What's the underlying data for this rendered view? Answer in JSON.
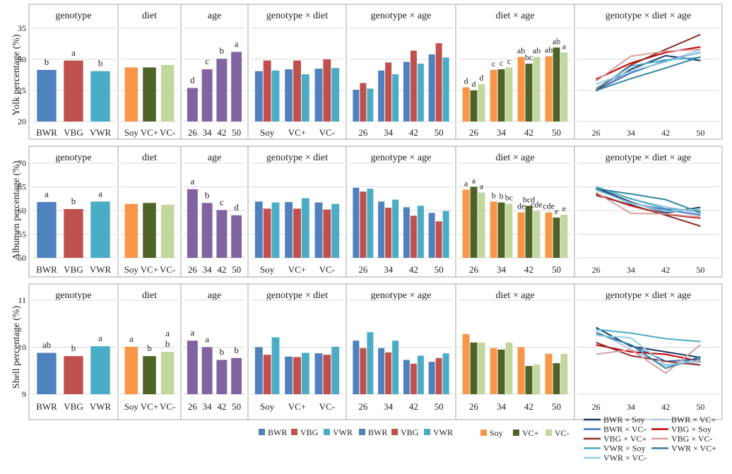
{
  "colors": {
    "BWR": "#4F81BD",
    "VBG": "#C0504D",
    "VWR": "#4BACC6",
    "Soy": "#F79646",
    "VC+": "#4F6228",
    "VC-": "#C3D69B",
    "age": "#8064A2",
    "BWR × Soy": "#1F3864",
    "BWR × VC+": "#B4C7E7",
    "BWR × VC-": "#4472C4",
    "VBG × Soy": "#C00000",
    "VBG × VC+": "#8B2E2E",
    "VBG × VC-": "#D9A0A0",
    "VWR × Soy": "#4BACC6",
    "VWR × VC+": "#31859C",
    "VWR × VC-": "#92CDDC",
    "grid": "#D9D9D9",
    "border": "#A6A6A6"
  },
  "panel_titles": [
    "genotype",
    "diet",
    "age",
    "genotype × diet",
    "genotype × age",
    "diet × age",
    "genotype × diet × age"
  ],
  "legends": {
    "genotype": [
      "BWR",
      "VBG",
      "VWR"
    ],
    "diet": [
      "Soy",
      "VC+",
      "VC-"
    ],
    "interaction": [
      "BWR × Soy",
      "BWR × VC+",
      "BWR × VC-",
      "VBG × Soy",
      "VBG × VC+",
      "VBG × VC-",
      "VWR × Soy",
      "VWR × VC+",
      "VWR × VC-"
    ]
  },
  "chart_data": [
    {
      "type": "bar",
      "ylabel": "Yolk percentage (%)",
      "ylim": [
        20,
        35
      ],
      "yticks": [
        20,
        25,
        30,
        35
      ],
      "genotype": {
        "categories": [
          "BWR",
          "VBG",
          "VWR"
        ],
        "values": [
          28.3,
          29.8,
          28.1
        ],
        "letters": [
          "b",
          "a",
          "b"
        ]
      },
      "diet": {
        "categories": [
          "Soy",
          "VC+",
          "VC-"
        ],
        "values": [
          28.7,
          28.7,
          29.1
        ],
        "letters": [
          "",
          "",
          ""
        ]
      },
      "age": {
        "categories": [
          "26",
          "34",
          "42",
          "50"
        ],
        "values": [
          25.4,
          28.4,
          30.1,
          31.2
        ],
        "letters": [
          "d",
          "c",
          "b",
          "a"
        ]
      },
      "genotype_diet": {
        "categories": [
          "Soy",
          "VC+",
          "VC-"
        ],
        "series": [
          {
            "name": "BWR",
            "values": [
              28.1,
              28.4,
              28.5
            ]
          },
          {
            "name": "VBG",
            "values": [
              29.8,
              29.8,
              30.0
            ]
          },
          {
            "name": "VWR",
            "values": [
              28.2,
              27.6,
              28.6
            ]
          }
        ]
      },
      "genotype_age": {
        "categories": [
          "26",
          "34",
          "42",
          "50"
        ],
        "series": [
          {
            "name": "BWR",
            "values": [
              25.1,
              28.2,
              29.6,
              30.8
            ]
          },
          {
            "name": "VBG",
            "values": [
              26.2,
              29.5,
              31.4,
              32.6
            ]
          },
          {
            "name": "VWR",
            "values": [
              25.3,
              27.6,
              29.3,
              30.3
            ]
          }
        ]
      },
      "diet_age": {
        "categories": [
          "26",
          "34",
          "42",
          "50"
        ],
        "series": [
          {
            "name": "Soy",
            "values": [
              25.5,
              28.3,
              30.4,
              30.5
            ]
          },
          {
            "name": "VC+",
            "values": [
              25.0,
              28.4,
              29.3,
              31.9
            ]
          },
          {
            "name": "VC-",
            "values": [
              26.0,
              28.7,
              30.4,
              31.1
            ]
          }
        ],
        "letters": [
          [
            "d",
            "d",
            "d"
          ],
          [
            "c",
            "c",
            "c"
          ],
          [
            "ab",
            "bc",
            "ab"
          ],
          [
            "ab",
            "ab",
            "a"
          ]
        ]
      },
      "genotype_diet_age": {
        "type": "line",
        "x": [
          "26",
          "34",
          "42",
          "50"
        ],
        "series": [
          {
            "name": "BWR × Soy",
            "values": [
              24.9,
              28.4,
              30.6,
              29.8
            ]
          },
          {
            "name": "BWR × VC+",
            "values": [
              25.2,
              28.0,
              29.6,
              31.6
            ]
          },
          {
            "name": "BWR × VC-",
            "values": [
              25.0,
              27.8,
              29.8,
              31.1
            ]
          },
          {
            "name": "VBG × Soy",
            "values": [
              26.8,
              29.4,
              31.1,
              32.0
            ]
          },
          {
            "name": "VBG × VC+",
            "values": [
              25.0,
              29.1,
              31.6,
              34.0
            ]
          },
          {
            "name": "VBG × VC-",
            "values": [
              26.5,
              30.5,
              31.3,
              31.6
            ]
          },
          {
            "name": "VWR × Soy",
            "values": [
              25.3,
              28.9,
              29.9,
              30.3
            ]
          },
          {
            "name": "VWR × VC+",
            "values": [
              25.0,
              26.9,
              28.6,
              30.4
            ]
          },
          {
            "name": "VWR × VC-",
            "values": [
              26.0,
              28.1,
              29.6,
              31.2
            ]
          }
        ]
      }
    },
    {
      "type": "bar",
      "ylabel": "Albumen percentage (%)",
      "ylim": [
        50,
        70
      ],
      "yticks": [
        50,
        55,
        60,
        65,
        70
      ],
      "genotype": {
        "categories": [
          "BWR",
          "VBG",
          "VWR"
        ],
        "values": [
          61.8,
          60.3,
          61.9
        ],
        "letters": [
          "a",
          "b",
          "a"
        ]
      },
      "diet": {
        "categories": [
          "Soy",
          "VC+",
          "VC-"
        ],
        "values": [
          61.4,
          61.6,
          61.2
        ],
        "letters": [
          "",
          "",
          ""
        ]
      },
      "age": {
        "categories": [
          "26",
          "34",
          "42",
          "50"
        ],
        "values": [
          64.5,
          61.6,
          60.1,
          59.0
        ],
        "letters": [
          "a",
          "b",
          "c",
          "d"
        ]
      },
      "genotype_diet": {
        "categories": [
          "Soy",
          "VC+",
          "VC-"
        ],
        "series": [
          {
            "name": "BWR",
            "values": [
              61.9,
              61.8,
              61.7
            ]
          },
          {
            "name": "VBG",
            "values": [
              60.4,
              60.4,
              60.2
            ]
          },
          {
            "name": "VWR",
            "values": [
              61.7,
              62.6,
              61.4
            ]
          }
        ]
      },
      "genotype_age": {
        "categories": [
          "26",
          "34",
          "42",
          "50"
        ],
        "series": [
          {
            "name": "BWR",
            "values": [
              64.8,
              61.9,
              60.7,
              59.5
            ]
          },
          {
            "name": "VBG",
            "values": [
              64.0,
              60.6,
              58.9,
              57.7
            ]
          },
          {
            "name": "VWR",
            "values": [
              64.6,
              62.3,
              61.0,
              59.9
            ]
          }
        ]
      },
      "diet_age": {
        "categories": [
          "26",
          "34",
          "42",
          "50"
        ],
        "series": [
          {
            "name": "Soy",
            "values": [
              64.4,
              61.9,
              59.6,
              59.6
            ]
          },
          {
            "name": "VC+",
            "values": [
              65.0,
              61.7,
              61.0,
              58.5
            ]
          },
          {
            "name": "VC-",
            "values": [
              63.8,
              61.4,
              59.9,
              59.1
            ]
          }
        ],
        "letters": [
          [
            "a",
            "a",
            "a"
          ],
          [
            "b",
            "b",
            "bc"
          ],
          [
            "de",
            "bcd",
            "cde"
          ],
          [
            "cde",
            "e",
            "e"
          ]
        ]
      },
      "genotype_diet_age": {
        "type": "line",
        "x": [
          "26",
          "34",
          "42",
          "50"
        ],
        "series": [
          {
            "name": "BWR × Soy",
            "values": [
              64.8,
              61.8,
              59.5,
              60.7
            ]
          },
          {
            "name": "BWR × VC+",
            "values": [
              65.0,
              62.4,
              60.8,
              59.3
            ]
          },
          {
            "name": "BWR × VC-",
            "values": [
              64.5,
              61.5,
              60.2,
              59.0
            ]
          },
          {
            "name": "VBG × Soy",
            "values": [
              63.5,
              61.0,
              59.2,
              58.4
            ]
          },
          {
            "name": "VBG × VC+",
            "values": [
              63.2,
              61.2,
              59.0,
              56.7
            ]
          },
          {
            "name": "VBG × VC-",
            "values": [
              63.8,
              59.4,
              59.3,
              58.6
            ]
          },
          {
            "name": "VWR × Soy",
            "values": [
              65.0,
              62.5,
              60.4,
              59.9
            ]
          },
          {
            "name": "VWR × VC+",
            "values": [
              64.6,
              63.5,
              62.3,
              59.5
            ]
          },
          {
            "name": "VWR × VC-",
            "values": [
              64.3,
              61.6,
              59.8,
              60.3
            ]
          }
        ]
      }
    },
    {
      "type": "bar",
      "ylabel": "Shell percentage (%)",
      "ylim": [
        9,
        11
      ],
      "yticks": [
        9,
        10,
        11
      ],
      "genotype": {
        "categories": [
          "BWR",
          "VBG",
          "VWR"
        ],
        "values": [
          9.88,
          9.81,
          10.02
        ],
        "letters": [
          "ab",
          "b",
          "a"
        ]
      },
      "diet": {
        "categories": [
          "Soy",
          "VC+",
          "VC-"
        ],
        "values": [
          10.01,
          9.81,
          9.9
        ],
        "letters": [
          "a",
          "b",
          "a\nb"
        ]
      },
      "age": {
        "categories": [
          "26",
          "34",
          "42",
          "50"
        ],
        "values": [
          10.14,
          10.0,
          9.73,
          9.77
        ],
        "letters": [
          "a",
          "a",
          "b",
          "b"
        ]
      },
      "genotype_diet": {
        "categories": [
          "Soy",
          "VC+",
          "VC-"
        ],
        "series": [
          {
            "name": "BWR",
            "values": [
              10.0,
              9.8,
              9.87
            ]
          },
          {
            "name": "VBG",
            "values": [
              9.84,
              9.79,
              9.84
            ]
          },
          {
            "name": "VWR",
            "values": [
              10.21,
              9.88,
              10.01
            ]
          }
        ]
      },
      "genotype_age": {
        "categories": [
          "26",
          "34",
          "42",
          "50"
        ],
        "series": [
          {
            "name": "BWR",
            "values": [
              10.14,
              9.98,
              9.73,
              9.69
            ]
          },
          {
            "name": "VBG",
            "values": [
              9.98,
              9.89,
              9.65,
              9.77
            ]
          },
          {
            "name": "VWR",
            "values": [
              10.32,
              10.14,
              9.82,
              9.87
            ]
          }
        ]
      },
      "diet_age": {
        "categories": [
          "26",
          "34",
          "42",
          "50"
        ],
        "series": [
          {
            "name": "Soy",
            "values": [
              10.28,
              9.98,
              10.0,
              9.86
            ]
          },
          {
            "name": "VC+",
            "values": [
              10.1,
              9.95,
              9.6,
              9.66
            ]
          },
          {
            "name": "VC-",
            "values": [
              10.1,
              10.1,
              9.63,
              9.86
            ]
          }
        ],
        "letters": [
          [
            "",
            "",
            ""
          ],
          [
            "",
            "",
            ""
          ],
          [
            "",
            "",
            ""
          ],
          [
            "",
            "",
            ""
          ]
        ]
      },
      "genotype_diet_age": {
        "type": "line",
        "x": [
          "26",
          "34",
          "42",
          "50"
        ],
        "series": [
          {
            "name": "BWR × Soy",
            "values": [
              10.42,
              10.02,
              9.9,
              9.78
            ]
          },
          {
            "name": "BWR × VC+",
            "values": [
              10.35,
              9.95,
              9.6,
              9.68
            ]
          },
          {
            "name": "BWR × VC-",
            "values": [
              10.3,
              10.05,
              9.7,
              9.75
            ]
          },
          {
            "name": "VBG × Soy",
            "values": [
              10.05,
              9.9,
              9.85,
              9.7
            ]
          },
          {
            "name": "VBG × VC+",
            "values": [
              10.1,
              9.82,
              9.7,
              9.62
            ]
          },
          {
            "name": "VBG × VC-",
            "values": [
              9.85,
              9.95,
              9.45,
              10.05
            ]
          },
          {
            "name": "VWR × Soy",
            "values": [
              10.38,
              10.3,
              10.18,
              10.12
            ]
          },
          {
            "name": "VWR × VC+",
            "values": [
              10.3,
              10.05,
              9.55,
              9.8
            ]
          },
          {
            "name": "VWR × VC-",
            "values": [
              10.25,
              10.2,
              9.62,
              9.72
            ]
          }
        ]
      }
    }
  ]
}
